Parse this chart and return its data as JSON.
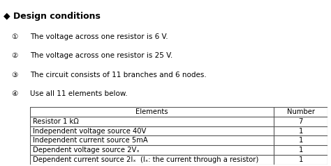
{
  "title": "Design conditions",
  "conditions": [
    "The voltage across one resistor is 6 V.",
    "The voltage across one resistor is 25 V.",
    "The circuit consists of 11 branches and 6 nodes.",
    "Use all 11 elements below."
  ],
  "table_headers": [
    "Elements",
    "Number"
  ],
  "table_rows": [
    [
      "Resistor 1 kΩ",
      "7"
    ],
    [
      "Independent voltage source 40V",
      "1"
    ],
    [
      "Independent current source 5mA",
      "1"
    ],
    [
      "Dependent voltage source 2Vₓ",
      "1"
    ],
    [
      "Dependent current source 2Iₓ  (Iₓ: the current through a resistor)",
      "1"
    ]
  ],
  "background_color": "#ffffff",
  "text_color": "#000000",
  "font_size": 7.5,
  "title_font_size": 9,
  "condition_font_size": 7.5,
  "table_font_size": 7.2,
  "diamond_color": "#000000",
  "header_bg": "#f0f0f0"
}
